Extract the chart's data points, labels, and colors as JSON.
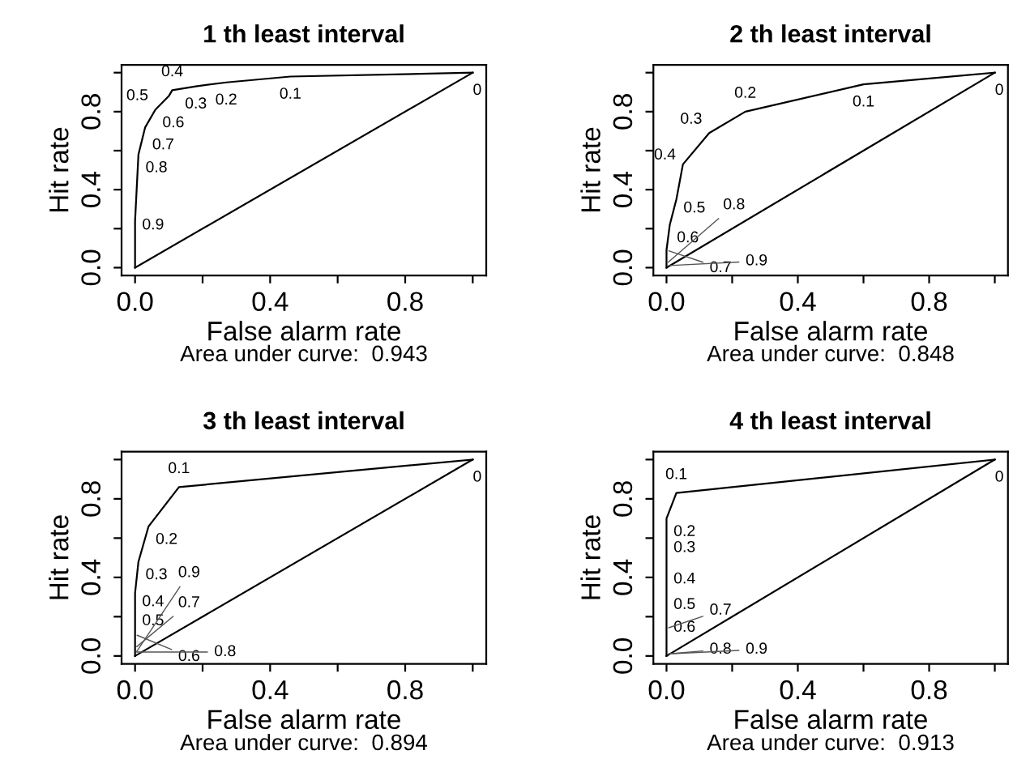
{
  "chart_data": [
    {
      "type": "line",
      "title": "1 th least interval",
      "xlabel": "False alarm rate",
      "ylabel": "Hit rate",
      "xlim": [
        -0.04,
        1.04
      ],
      "ylim": [
        -0.04,
        1.04
      ],
      "xticks": [
        {
          "value": 0,
          "label": "0.0"
        },
        {
          "value": 0.2,
          "label": null
        },
        {
          "value": 0.4,
          "label": "0.4"
        },
        {
          "value": 0.6,
          "label": null
        },
        {
          "value": 0.8,
          "label": "0.8"
        },
        {
          "value": 1,
          "label": null
        }
      ],
      "yticks": [
        {
          "value": 0,
          "label": "0.0"
        },
        {
          "value": 0.2,
          "label": null
        },
        {
          "value": 0.4,
          "label": "0.4"
        },
        {
          "value": 0.6,
          "label": null
        },
        {
          "value": 0.8,
          "label": "0.8"
        },
        {
          "value": 1,
          "label": null
        }
      ],
      "series": [
        {
          "color": "#000000",
          "x": [
            1,
            0.46,
            0.27,
            0.18,
            0.11,
            0.1,
            0.06,
            0.03,
            0.01,
            0,
            0
          ],
          "values": [
            1,
            0.98,
            0.95,
            0.93,
            0.91,
            0.88,
            0.81,
            0.72,
            0.58,
            0.24,
            0
          ]
        },
        {
          "color": "#000000",
          "x": [
            0,
            1
          ],
          "values": [
            0,
            1
          ]
        }
      ],
      "annotations": [
        {
          "text": "0",
          "x": 1,
          "y": 1
        },
        {
          "text": "0.1",
          "x": 0.46,
          "y": 0.98
        },
        {
          "text": "0.2",
          "x": 0.27,
          "y": 0.95
        },
        {
          "text": "0.3",
          "x": 0.18,
          "y": 0.93
        },
        {
          "text": "0.4",
          "x": 0.11,
          "y": 0.91
        },
        {
          "text": "0.5",
          "x": 0.1,
          "y": 0.88
        },
        {
          "text": "0.6",
          "x": 0.06,
          "y": 0.81
        },
        {
          "text": "0.7",
          "x": 0.03,
          "y": 0.72
        },
        {
          "text": "0.8",
          "x": 0.01,
          "y": 0.58
        },
        {
          "text": "0.9",
          "x": 0,
          "y": 0.24
        },
        "Area under curve:  0.943"
      ]
    },
    {
      "type": "line",
      "title": "2 th least interval",
      "xlabel": "False alarm rate",
      "ylabel": "Hit rate",
      "xlim": [
        -0.04,
        1.04
      ],
      "ylim": [
        -0.04,
        1.04
      ],
      "xticks": [
        {
          "value": 0,
          "label": "0.0"
        },
        {
          "value": 0.2,
          "label": null
        },
        {
          "value": 0.4,
          "label": "0.4"
        },
        {
          "value": 0.6,
          "label": null
        },
        {
          "value": 0.8,
          "label": "0.8"
        },
        {
          "value": 1,
          "label": null
        }
      ],
      "yticks": [
        {
          "value": 0,
          "label": "0.0"
        },
        {
          "value": 0.2,
          "label": null
        },
        {
          "value": 0.4,
          "label": "0.4"
        },
        {
          "value": 0.6,
          "label": null
        },
        {
          "value": 0.8,
          "label": "0.8"
        },
        {
          "value": 1,
          "label": null
        }
      ],
      "series": [
        {
          "color": "#000000",
          "x": [
            1,
            0.6,
            0.24,
            0.13,
            0.05,
            0.03,
            0.01,
            0,
            0,
            0,
            0
          ],
          "values": [
            1,
            0.94,
            0.8,
            0.69,
            0.53,
            0.35,
            0.22,
            0.09,
            0.02,
            0.01,
            0
          ]
        },
        {
          "color": "#000000",
          "x": [
            0,
            1
          ],
          "values": [
            0,
            1
          ]
        }
      ],
      "annotations": [
        {
          "text": "0",
          "x": 1,
          "y": 1
        },
        {
          "text": "0.1",
          "x": 0.6,
          "y": 0.94
        },
        {
          "text": "0.2",
          "x": 0.24,
          "y": 0.8
        },
        {
          "text": "0.3",
          "x": 0.13,
          "y": 0.69
        },
        {
          "text": "0.4",
          "x": 0.05,
          "y": 0.53
        },
        {
          "text": "0.5",
          "x": 0.03,
          "y": 0.35
        },
        {
          "text": "0.6",
          "x": 0.01,
          "y": 0.22
        },
        {
          "text": "0.7",
          "x": 0,
          "y": 0.09
        },
        {
          "text": "0.8",
          "x": 0,
          "y": 0.02
        },
        {
          "text": "0.9",
          "x": 0,
          "y": 0.01
        },
        "Area under curve:  0.848"
      ]
    },
    {
      "type": "line",
      "title": "3 th least interval",
      "xlabel": "False alarm rate",
      "ylabel": "Hit rate",
      "xlim": [
        -0.04,
        1.04
      ],
      "ylim": [
        -0.04,
        1.04
      ],
      "xticks": [
        {
          "value": 0,
          "label": "0.0"
        },
        {
          "value": 0.2,
          "label": null
        },
        {
          "value": 0.4,
          "label": "0.4"
        },
        {
          "value": 0.6,
          "label": null
        },
        {
          "value": 0.8,
          "label": "0.8"
        },
        {
          "value": 1,
          "label": null
        }
      ],
      "yticks": [
        {
          "value": 0,
          "label": "0.0"
        },
        {
          "value": 0.2,
          "label": null
        },
        {
          "value": 0.4,
          "label": "0.4"
        },
        {
          "value": 0.6,
          "label": null
        },
        {
          "value": 0.8,
          "label": "0.8"
        },
        {
          "value": 1,
          "label": null
        }
      ],
      "series": [
        {
          "color": "#000000",
          "x": [
            1,
            0.13,
            0.04,
            0.01,
            0,
            0,
            0,
            0,
            0,
            0,
            0
          ],
          "values": [
            1,
            0.86,
            0.66,
            0.48,
            0.32,
            0.2,
            0.11,
            0.04,
            0.02,
            0.01,
            0
          ]
        },
        {
          "color": "#000000",
          "x": [
            0,
            1
          ],
          "values": [
            0,
            1
          ]
        }
      ],
      "annotations": [
        {
          "text": "0",
          "x": 1,
          "y": 1
        },
        {
          "text": "0.1",
          "x": 0.13,
          "y": 0.86
        },
        {
          "text": "0.2",
          "x": 0.04,
          "y": 0.66
        },
        {
          "text": "0.3",
          "x": 0.01,
          "y": 0.48
        },
        {
          "text": "0.4",
          "x": 0,
          "y": 0.32
        },
        {
          "text": "0.5",
          "x": 0,
          "y": 0.2
        },
        {
          "text": "0.6",
          "x": 0,
          "y": 0.11
        },
        {
          "text": "0.7",
          "x": 0,
          "y": 0.04
        },
        {
          "text": "0.8",
          "x": 0,
          "y": 0.02
        },
        {
          "text": "0.9",
          "x": 0,
          "y": 0.01
        },
        "Area under curve:  0.894"
      ]
    },
    {
      "type": "line",
      "title": "4 th least interval",
      "xlabel": "False alarm rate",
      "ylabel": "Hit rate",
      "xlim": [
        -0.04,
        1.04
      ],
      "ylim": [
        -0.04,
        1.04
      ],
      "xticks": [
        {
          "value": 0,
          "label": "0.0"
        },
        {
          "value": 0.2,
          "label": null
        },
        {
          "value": 0.4,
          "label": "0.4"
        },
        {
          "value": 0.6,
          "label": null
        },
        {
          "value": 0.8,
          "label": "0.8"
        },
        {
          "value": 1,
          "label": null
        }
      ],
      "yticks": [
        {
          "value": 0,
          "label": "0.0"
        },
        {
          "value": 0.2,
          "label": null
        },
        {
          "value": 0.4,
          "label": "0.4"
        },
        {
          "value": 0.6,
          "label": null
        },
        {
          "value": 0.8,
          "label": "0.8"
        },
        {
          "value": 1,
          "label": null
        }
      ],
      "series": [
        {
          "color": "#000000",
          "x": [
            1,
            0.03,
            0,
            0,
            0,
            0,
            0,
            0,
            0,
            0,
            0
          ],
          "values": [
            1,
            0.83,
            0.7,
            0.55,
            0.39,
            0.26,
            0.19,
            0.14,
            0.01,
            0.01,
            0
          ]
        },
        {
          "color": "#000000",
          "x": [
            0,
            1
          ],
          "values": [
            0,
            1
          ]
        }
      ],
      "annotations": [
        {
          "text": "0",
          "x": 1,
          "y": 1
        },
        {
          "text": "0.1",
          "x": 0.03,
          "y": 0.83
        },
        {
          "text": "0.2",
          "x": 0,
          "y": 0.7
        },
        {
          "text": "0.3",
          "x": 0,
          "y": 0.55
        },
        {
          "text": "0.4",
          "x": 0,
          "y": 0.39
        },
        {
          "text": "0.5",
          "x": 0,
          "y": 0.26
        },
        {
          "text": "0.6",
          "x": 0,
          "y": 0.19
        },
        {
          "text": "0.7",
          "x": 0,
          "y": 0.14
        },
        {
          "text": "0.8",
          "x": 0,
          "y": 0.01
        },
        {
          "text": "0.9",
          "x": 0,
          "y": 0.01
        },
        "Area under curve:  0.913"
      ]
    }
  ]
}
